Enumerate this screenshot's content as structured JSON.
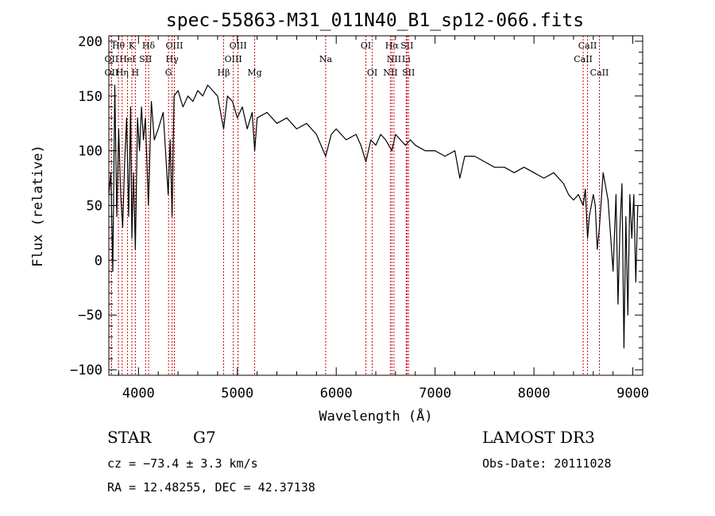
{
  "chart_data": {
    "type": "line",
    "title": "spec-55863-M31_011N40_B1_sp12-066.fits",
    "xlabel": "Wavelength (Å)",
    "ylabel": "Flux (relative)",
    "xlim": [
      3700,
      9100
    ],
    "ylim": [
      -105,
      205
    ],
    "x_ticks": [
      4000,
      5000,
      6000,
      7000,
      8000,
      9000
    ],
    "y_ticks": [
      -100,
      -50,
      0,
      50,
      100,
      150,
      200
    ],
    "series": [
      {
        "name": "spectrum",
        "x": [
          3700,
          3720,
          3740,
          3760,
          3780,
          3800,
          3820,
          3840,
          3860,
          3880,
          3900,
          3920,
          3933,
          3950,
          3968,
          3990,
          4010,
          4030,
          4050,
          4070,
          4100,
          4130,
          4160,
          4200,
          4250,
          4300,
          4320,
          4340,
          4360,
          4400,
          4450,
          4500,
          4550,
          4600,
          4650,
          4700,
          4750,
          4800,
          4861,
          4900,
          4950,
          5000,
          5050,
          5100,
          5150,
          5175,
          5200,
          5300,
          5400,
          5500,
          5600,
          5700,
          5800,
          5893,
          5950,
          6000,
          6100,
          6200,
          6250,
          6300,
          6350,
          6400,
          6450,
          6500,
          6563,
          6600,
          6650,
          6700,
          6750,
          6800,
          6900,
          7000,
          7100,
          7200,
          7250,
          7300,
          7400,
          7500,
          7600,
          7700,
          7800,
          7900,
          8000,
          8100,
          8200,
          8300,
          8350,
          8400,
          8450,
          8498,
          8520,
          8542,
          8560,
          8600,
          8620,
          8640,
          8662,
          8700,
          8750,
          8800,
          8830,
          8850,
          8870,
          8890,
          8910,
          8930,
          8950,
          8970,
          8990,
          9010,
          9030,
          9050
        ],
        "values": [
          60,
          80,
          -10,
          160,
          40,
          120,
          60,
          30,
          90,
          130,
          40,
          140,
          20,
          80,
          10,
          130,
          100,
          140,
          110,
          130,
          50,
          145,
          110,
          120,
          135,
          60,
          110,
          40,
          150,
          155,
          140,
          150,
          145,
          155,
          150,
          160,
          155,
          150,
          120,
          150,
          145,
          130,
          140,
          120,
          135,
          100,
          130,
          135,
          125,
          130,
          120,
          125,
          115,
          95,
          115,
          120,
          110,
          115,
          105,
          90,
          110,
          105,
          115,
          110,
          100,
          115,
          110,
          105,
          110,
          105,
          100,
          100,
          95,
          100,
          75,
          95,
          95,
          90,
          85,
          85,
          80,
          85,
          80,
          75,
          80,
          70,
          60,
          55,
          60,
          50,
          65,
          20,
          40,
          60,
          50,
          10,
          30,
          80,
          55,
          -10,
          60,
          -40,
          30,
          70,
          -80,
          40,
          -50,
          60,
          20,
          60,
          -20,
          50
        ]
      }
    ],
    "spectral_lines": [
      {
        "label": "Hθ",
        "x": 3797,
        "row": 1
      },
      {
        "label": "K",
        "x": 3933,
        "row": 1
      },
      {
        "label": "Hδ",
        "x": 4102,
        "row": 1
      },
      {
        "label": "OIII",
        "x": 4363,
        "row": 1
      },
      {
        "label": "OIII",
        "x": 5007,
        "row": 1
      },
      {
        "label": "OI",
        "x": 6300,
        "row": 1
      },
      {
        "label": "Hα",
        "x": 6563,
        "row": 1
      },
      {
        "label": "SII",
        "x": 6716,
        "row": 1
      },
      {
        "label": "CaII",
        "x": 8542,
        "row": 1
      },
      {
        "label": "OII",
        "x": 3727,
        "row": 2
      },
      {
        "label": "HeI",
        "x": 3889,
        "row": 2
      },
      {
        "label": "SII",
        "x": 4072,
        "row": 2
      },
      {
        "label": "Hγ",
        "x": 4340,
        "row": 2
      },
      {
        "label": "OIII",
        "x": 4959,
        "row": 2
      },
      {
        "label": "Na",
        "x": 5893,
        "row": 2
      },
      {
        "label": "NII",
        "x": 6584,
        "row": 2
      },
      {
        "label": "Li",
        "x": 6708,
        "row": 2
      },
      {
        "label": "CaII",
        "x": 8498,
        "row": 2
      },
      {
        "label": "OII",
        "x": 3727,
        "row": 3
      },
      {
        "label": "Hη",
        "x": 3835,
        "row": 3
      },
      {
        "label": "H",
        "x": 3968,
        "row": 3
      },
      {
        "label": "G",
        "x": 4304,
        "row": 3
      },
      {
        "label": "Hβ",
        "x": 4861,
        "row": 3
      },
      {
        "label": "Mg",
        "x": 5175,
        "row": 3
      },
      {
        "label": "OI",
        "x": 6364,
        "row": 3
      },
      {
        "label": "NII",
        "x": 6548,
        "row": 3
      },
      {
        "label": "SII",
        "x": 6731,
        "row": 3
      },
      {
        "label": "CaII",
        "x": 8662,
        "row": 3
      }
    ],
    "line_color": "#000000",
    "marker_color": "#cc0000"
  },
  "info": {
    "object_class": "STAR",
    "subclass": "G7",
    "survey": "LAMOST DR3",
    "velocity": "cz = −73.4 ± 3.3 km/s",
    "obs_date": "Obs-Date: 20111028",
    "coords": "RA =  12.48255, DEC =  42.37138"
  }
}
